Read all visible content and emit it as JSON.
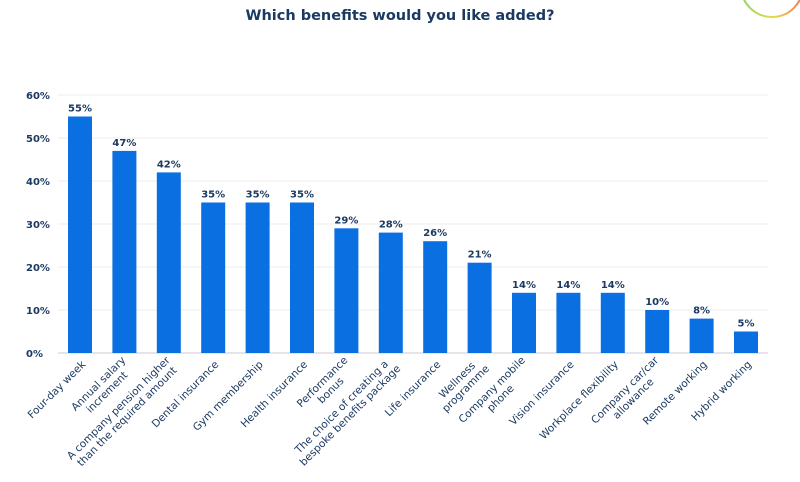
{
  "chart_data": {
    "type": "bar",
    "title": "Which benefits would you like added?",
    "xlabel": "",
    "ylabel": "",
    "ylim": [
      0,
      60
    ],
    "yticks": [
      "0%",
      "10%",
      "20%",
      "30%",
      "40%",
      "50%",
      "60%"
    ],
    "grid": true,
    "bar_color": "#0a6fe0",
    "categories": [
      [
        "Four-day week"
      ],
      [
        "Annual salary",
        "increment"
      ],
      [
        "A company pension higher",
        "than the required amount"
      ],
      [
        "Dental insurance"
      ],
      [
        "Gym membership"
      ],
      [
        "Health insurance"
      ],
      [
        "Performance",
        "bonus"
      ],
      [
        "The choice of creating a",
        "bespoke benefits package"
      ],
      [
        "Life insurance"
      ],
      [
        "Wellness",
        "programme"
      ],
      [
        "Company mobile",
        "phone"
      ],
      [
        "Vision insurance"
      ],
      [
        "Workplace flexibility"
      ],
      [
        "Company car/car",
        "allowance"
      ],
      [
        "Remote working"
      ],
      [
        "Hybrid working"
      ]
    ],
    "values": [
      55,
      47,
      42,
      35,
      35,
      35,
      29,
      28,
      26,
      21,
      14,
      14,
      14,
      10,
      8,
      5
    ],
    "data_labels": [
      "55%",
      "47%",
      "42%",
      "35%",
      "35%",
      "35%",
      "29%",
      "28%",
      "26%",
      "21%",
      "14%",
      "14%",
      "14%",
      "10%",
      "8%",
      "5%"
    ]
  }
}
